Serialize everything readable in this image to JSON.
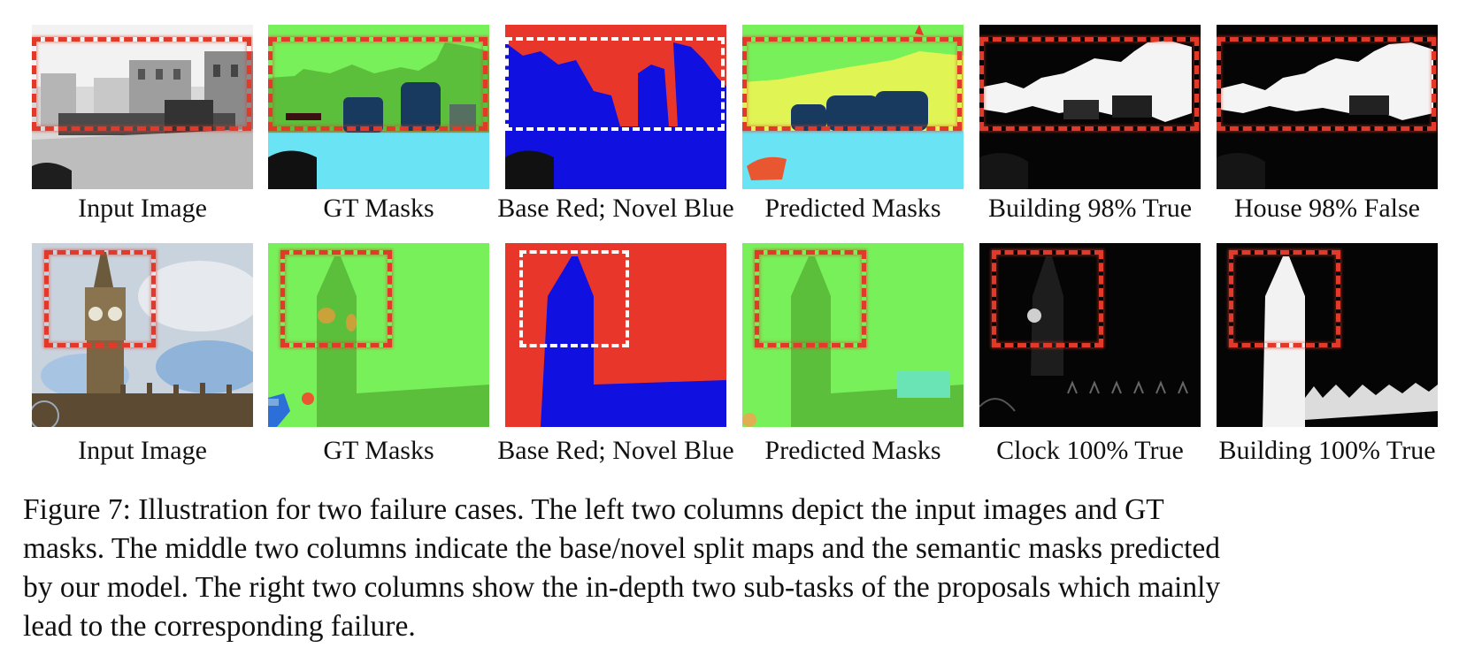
{
  "figure": {
    "rows": [
      {
        "labels": [
          "Input Image",
          "GT Masks",
          "Base Red; Novel Blue",
          "Predicted Masks",
          "Building 98% True",
          "House 98% False"
        ]
      },
      {
        "labels": [
          "Input Image",
          "GT Masks",
          "Base Red; Novel Blue",
          "Predicted Masks",
          "Clock 100% True",
          "Building 100% True"
        ]
      }
    ],
    "caption_lines": [
      "Figure 7: Illustration for two failure cases. The left two columns depict the input images and GT",
      "masks. The middle two columns indicate the base/novel split maps and the semantic masks predicted",
      "by our model. The right two columns show the in-depth two sub-tasks of the proposals which mainly",
      "lead to the corresponding failure."
    ]
  },
  "colors": {
    "base_red": "#e8372a",
    "novel_blue": "#1010e0",
    "mask_green_light": "#77f05a",
    "mask_green_dark": "#5cbf3c",
    "mask_navy": "#173a5e",
    "mask_cyan": "#6ae4f4",
    "mask_yellow": "#e0f454",
    "dash_red": "#e23a2a"
  }
}
